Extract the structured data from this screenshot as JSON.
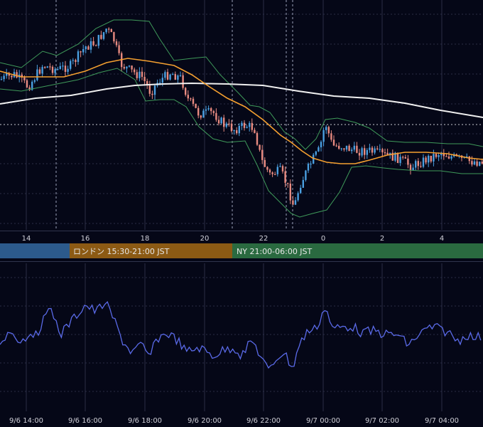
{
  "colors": {
    "background": "#050717",
    "grid": "#2a2d45",
    "candle_up": "#4a9fe0",
    "candle_down": "#e88a80",
    "bollinger": "#3f9a5a",
    "ma_short": "#f5a030",
    "ma_long": "#f0f0f0",
    "oscillator": "#5a6ae8",
    "session_tokyo": "#2c5a8c",
    "session_london": "#8c5a14",
    "session_ny": "#2a6a40"
  },
  "sessions": [
    {
      "name": "tokyo",
      "label": ""
    },
    {
      "name": "london",
      "label": "ロンドン 15:30-21:00 JST"
    },
    {
      "name": "ny",
      "label": "NY 21:00-06:00 JST"
    }
  ],
  "chart_data": [
    {
      "type": "candlestick",
      "title": "",
      "x_ticks": [
        "14",
        "16",
        "18",
        "20",
        "22",
        "0",
        "2",
        "4"
      ],
      "overlays": [
        "bollinger_bands",
        "moving_average_short",
        "moving_average_long"
      ],
      "grid": true,
      "session_separators": [
        "15:00",
        "21:00",
        "23:00",
        "23:30"
      ],
      "reference_line": "horizontal dotted line near mid-range"
    },
    {
      "type": "line",
      "title": "",
      "x_ticks": [
        "9/6 14:00",
        "9/6 16:00",
        "9/6 18:00",
        "9/6 20:00",
        "9/6 22:00",
        "9/7 00:00",
        "9/7 02:00",
        "9/7 04:00"
      ],
      "grid": true
    }
  ]
}
